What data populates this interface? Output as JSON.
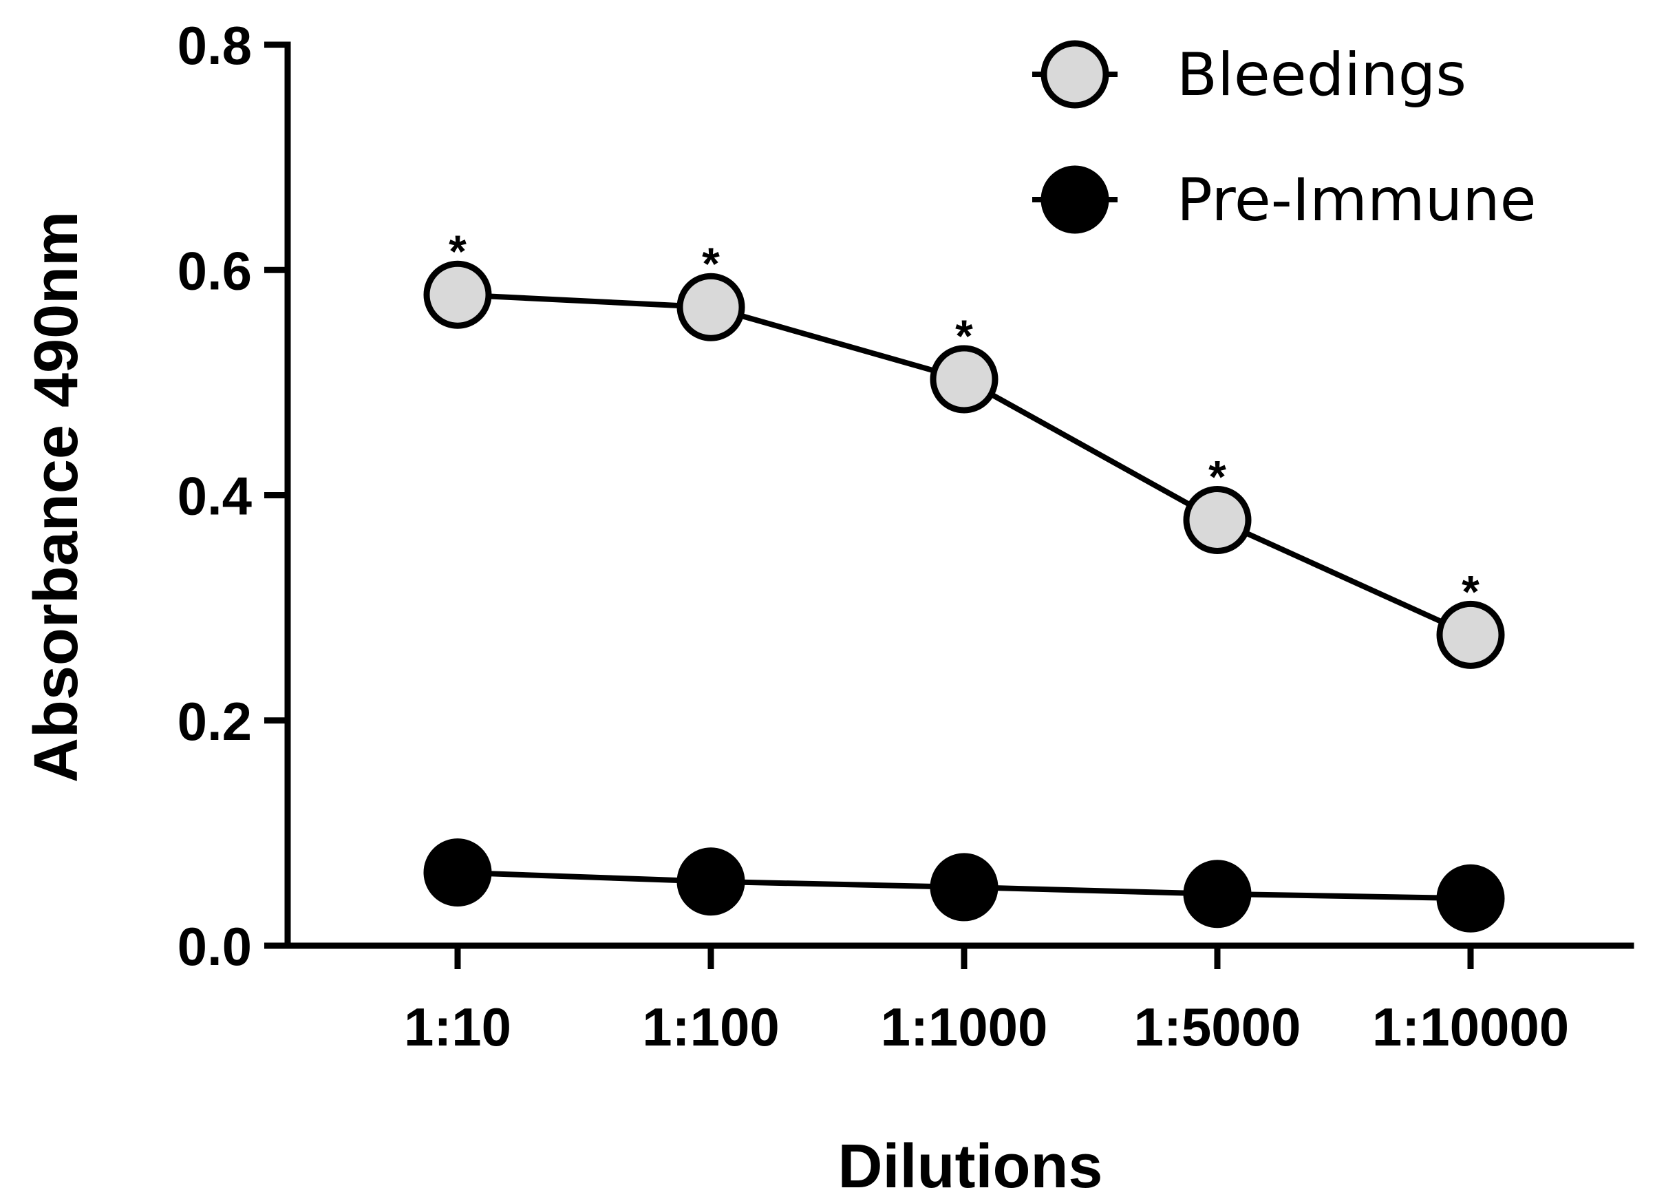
{
  "chart_data": {
    "type": "line",
    "title": "",
    "xlabel": "Dilutions",
    "ylabel": "Absorbance 490nm",
    "categories": [
      "1:10",
      "1:100",
      "1:1000",
      "1:5000",
      "1:10000"
    ],
    "ylim": [
      0,
      0.8
    ],
    "yticks": [
      "0.0",
      "0.2",
      "0.4",
      "0.6",
      "0.8"
    ],
    "ytick_values": [
      0,
      0.2,
      0.4,
      0.6,
      0.8
    ],
    "grid": false,
    "legend_position": "top-right",
    "series": [
      {
        "name": "Bleedings",
        "values": [
          0.578,
          0.567,
          0.503,
          0.378,
          0.276
        ],
        "marker_fill": "#d9d9d9",
        "marker_stroke": "#000000",
        "annotations": [
          "*",
          "*",
          "*",
          "*",
          "*"
        ]
      },
      {
        "name": "Pre-Immune",
        "values": [
          0.065,
          0.057,
          0.052,
          0.046,
          0.042
        ],
        "marker_fill": "#000000",
        "marker_stroke": "#000000",
        "annotations": []
      }
    ]
  }
}
